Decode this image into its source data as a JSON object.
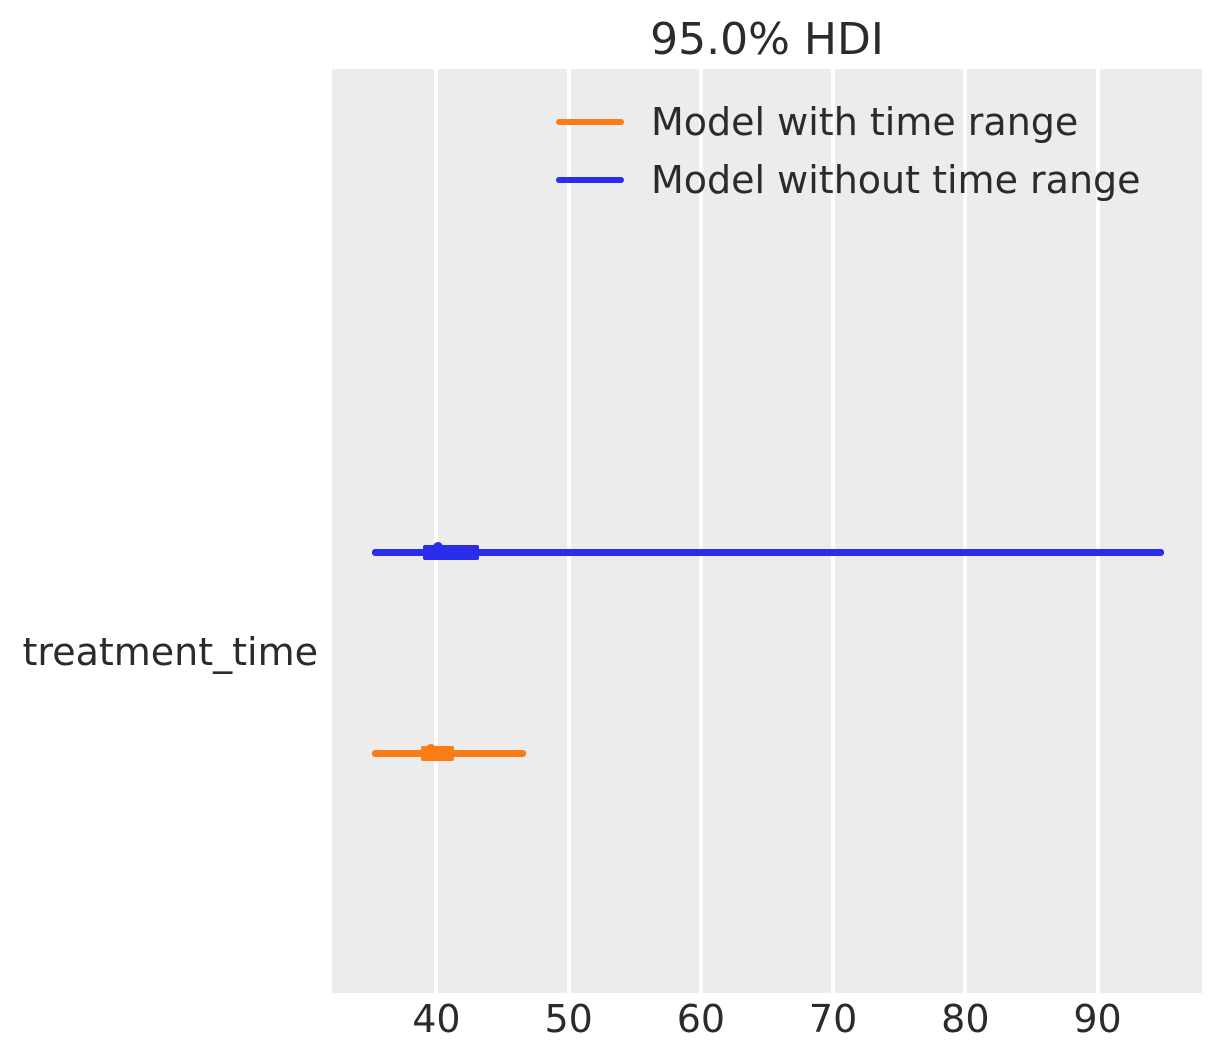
{
  "figure": {
    "background": "#ffffff",
    "plot_background": "#ececec",
    "grid_color": "#ffffff",
    "text_color": "#2b2b2b"
  },
  "chart_data": {
    "type": "forest_plot",
    "title": "95.0% HDI",
    "parameter_label": "treatment_time",
    "xlabel": "",
    "ylabel": "",
    "xlim": [
      32.1,
      97.9
    ],
    "x_ticks": [
      40,
      50,
      60,
      70,
      80,
      90
    ],
    "grid": true,
    "legend_position": "upper-center-inside",
    "series": [
      {
        "name": "Model with time range",
        "color": "#fa7c17",
        "hdi_95": [
          35.1,
          46.8
        ],
        "quartile_range": [
          38.8,
          41.3
        ],
        "median": 40.0,
        "row_frac": 0.741
      },
      {
        "name": "Model without time range",
        "color": "#2a2eec",
        "hdi_95": [
          35.1,
          95.0
        ],
        "quartile_range": [
          39.0,
          43.2
        ],
        "median": 40.5,
        "row_frac": 0.523
      }
    ]
  }
}
